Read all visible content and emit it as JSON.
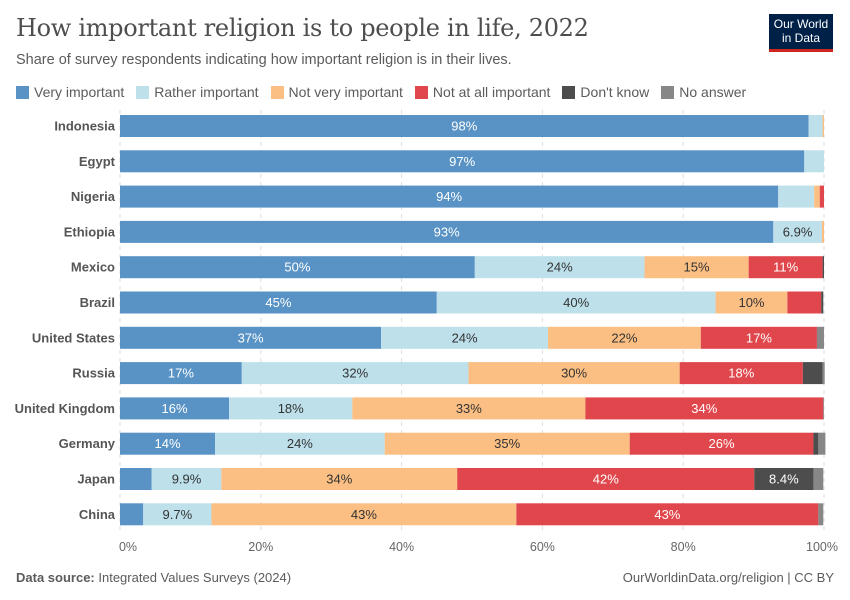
{
  "header": {
    "title": "How important religion is to people in life, 2022",
    "subtitle": "Share of survey respondents indicating how important religion is in their lives.",
    "logo": "Our World in Data"
  },
  "footer": {
    "source_label": "Data source:",
    "source": "Integrated Values Surveys (2024)",
    "credit": "OurWorldinData.org/religion | CC BY"
  },
  "chart_data": {
    "type": "bar",
    "orientation": "horizontal",
    "stacked": true,
    "title": "How important religion is to people in life, 2022",
    "subtitle": "Share of survey respondents indicating how important religion is in their lives.",
    "xlim": [
      0,
      100
    ],
    "x_ticks": [
      "0%",
      "20%",
      "40%",
      "60%",
      "80%",
      "100%"
    ],
    "grid": true,
    "legend_position": "top",
    "categories": [
      "Indonesia",
      "Egypt",
      "Nigeria",
      "Ethiopia",
      "Mexico",
      "Brazil",
      "United States",
      "Russia",
      "United Kingdom",
      "Germany",
      "Japan",
      "China"
    ],
    "series": [
      {
        "name": "Very important",
        "color": "#5993c6",
        "text_color": "#ffffff",
        "values": [
          97.8,
          97.2,
          93.5,
          92.8,
          50.4,
          45.0,
          37.1,
          17.3,
          15.5,
          13.5,
          4.5,
          3.3
        ]
      },
      {
        "name": "Rather important",
        "color": "#bde0eb",
        "text_color": "#333333",
        "values": [
          2.0,
          2.8,
          5.1,
          6.9,
          24.1,
          39.6,
          23.7,
          32.2,
          17.5,
          24.1,
          9.9,
          9.7
        ]
      },
      {
        "name": "Not very important",
        "color": "#fbbf83",
        "text_color": "#333333",
        "values": [
          0.2,
          0,
          0.8,
          0.3,
          14.8,
          10.2,
          21.7,
          30.0,
          33.1,
          34.8,
          33.5,
          43.3
        ]
      },
      {
        "name": "Not at all important",
        "color": "#e0474c",
        "text_color": "#ffffff",
        "values": [
          0,
          0,
          0.6,
          0,
          10.5,
          4.8,
          16.5,
          17.5,
          33.8,
          26.1,
          42.2,
          42.9
        ]
      },
      {
        "name": "Don't know",
        "color": "#4d4d4d",
        "text_color": "#ffffff",
        "values": [
          0,
          0,
          0,
          0,
          0.2,
          0.3,
          0,
          2.8,
          0,
          0.7,
          8.4,
          0
        ]
      },
      {
        "name": "No answer",
        "color": "#878787",
        "text_color": "#ffffff",
        "values": [
          0,
          0,
          0,
          0,
          0,
          0,
          1.0,
          0.3,
          0.1,
          1.0,
          1.4,
          0.7
        ]
      }
    ]
  }
}
